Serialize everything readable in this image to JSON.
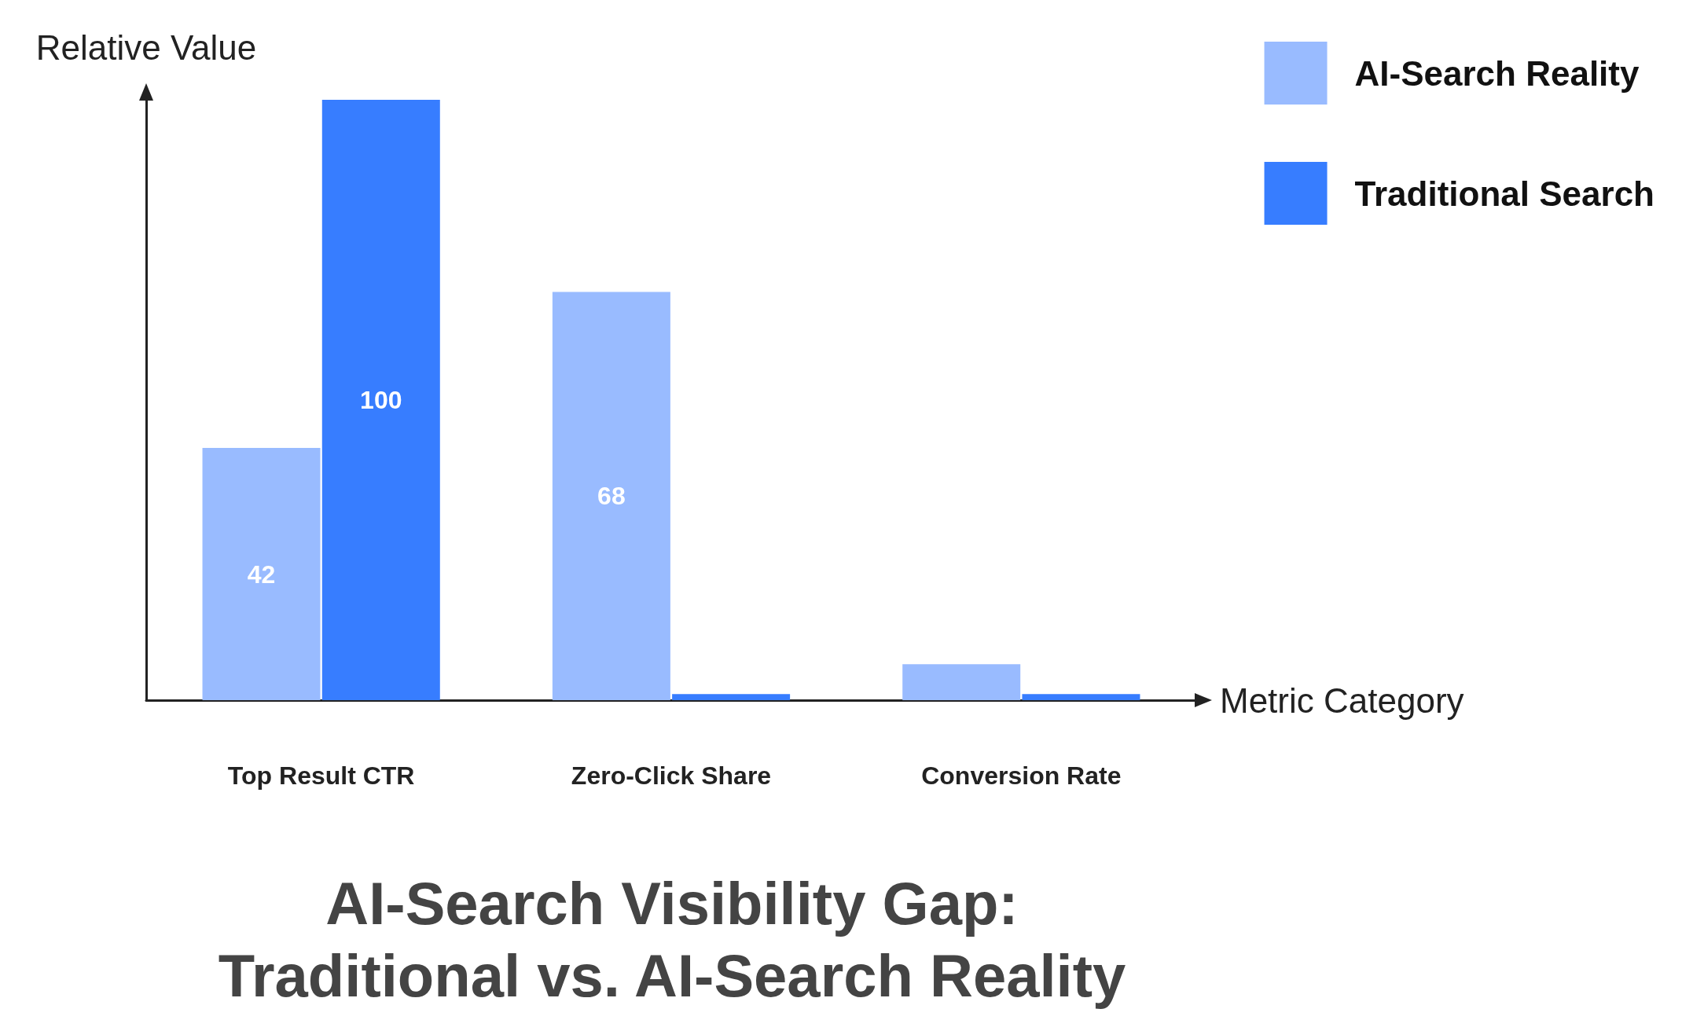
{
  "chart_data": {
    "type": "bar",
    "title": "AI-Search Visibility Gap:\nTraditional vs. AI-Search Reality",
    "xlabel": "Metric Category",
    "ylabel": "Relative Value",
    "categories": [
      "Top Result CTR",
      "Zero-Click Share",
      "Conversion Rate"
    ],
    "series": [
      {
        "name": "AI-Search Reality",
        "color": "#99bbff",
        "values": [
          42,
          68,
          6
        ],
        "value_labels": [
          "42",
          "68",
          null
        ]
      },
      {
        "name": "Traditional Search",
        "color": "#377dff",
        "values": [
          100,
          1,
          1
        ],
        "value_labels": [
          "100",
          null,
          null
        ]
      }
    ],
    "legend": "top right",
    "grid": false,
    "tick_labels": "x"
  }
}
